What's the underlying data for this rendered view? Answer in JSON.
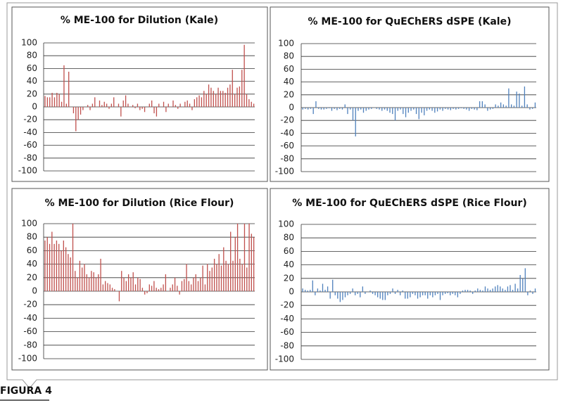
{
  "caption": "FIGURA 4",
  "chart_data": [
    {
      "type": "bar",
      "title": "% ME-100 for Dilution (Kale)",
      "color": "#c0504d",
      "ylim": [
        -100,
        100
      ],
      "yticks": [
        100,
        80,
        60,
        40,
        20,
        0,
        -20,
        -40,
        -60,
        -80,
        -100
      ],
      "grid": true,
      "values": [
        17,
        15,
        15,
        22,
        15,
        22,
        20,
        8,
        65,
        5,
        55,
        0,
        -10,
        -38,
        -20,
        -12,
        -5,
        0,
        3,
        -5,
        5,
        15,
        0,
        10,
        3,
        8,
        5,
        -3,
        5,
        15,
        0,
        5,
        -15,
        10,
        18,
        5,
        0,
        3,
        -2,
        5,
        -5,
        -3,
        -8,
        0,
        5,
        10,
        -10,
        -15,
        5,
        0,
        8,
        -8,
        5,
        0,
        10,
        3,
        -3,
        5,
        0,
        8,
        10,
        5,
        -5,
        12,
        15,
        18,
        15,
        25,
        20,
        35,
        30,
        25,
        20,
        30,
        25,
        25,
        22,
        30,
        35,
        58,
        20,
        30,
        32,
        58,
        97,
        20,
        12,
        8,
        5
      ]
    },
    {
      "type": "bar",
      "title": "% ME-100 for QuEChERS dSPE (Kale)",
      "color": "#4f81bd",
      "ylim": [
        -100,
        100
      ],
      "yticks": [
        100,
        80,
        60,
        40,
        20,
        0,
        -20,
        -40,
        -60,
        -80,
        -100
      ],
      "grid": true,
      "values": [
        -3,
        -2,
        -3,
        -2,
        -10,
        10,
        -2,
        -3,
        -3,
        -2,
        -1,
        -5,
        -2,
        -4,
        -2,
        -3,
        5,
        -10,
        -3,
        -20,
        -45,
        -5,
        -3,
        -8,
        -5,
        -3,
        -2,
        0,
        -2,
        -3,
        -5,
        -3,
        -5,
        -8,
        -10,
        -20,
        -5,
        -3,
        -10,
        -15,
        -8,
        -5,
        -3,
        -10,
        -18,
        -8,
        -12,
        -5,
        -3,
        -5,
        -8,
        -6,
        -3,
        -5,
        -2,
        -3,
        -4,
        -2,
        -3,
        -2,
        -1,
        -2,
        -3,
        -5,
        -2,
        -3,
        -4,
        10,
        10,
        5,
        -5,
        -3,
        -2,
        5,
        3,
        8,
        5,
        3,
        30,
        5,
        3,
        25,
        22,
        3,
        33,
        5,
        -3,
        -2,
        8
      ]
    },
    {
      "type": "bar",
      "title": "% ME-100 for Dilution (Rice Flour)",
      "color": "#c0504d",
      "ylim": [
        -100,
        100
      ],
      "yticks": [
        100,
        80,
        60,
        40,
        20,
        0,
        -20,
        -40,
        -60,
        -80,
        -100
      ],
      "grid": true,
      "values": [
        75,
        80,
        70,
        88,
        70,
        75,
        70,
        60,
        75,
        65,
        55,
        50,
        100,
        30,
        20,
        45,
        35,
        40,
        25,
        20,
        30,
        28,
        20,
        25,
        48,
        10,
        15,
        12,
        10,
        5,
        3,
        0,
        -15,
        30,
        20,
        15,
        25,
        20,
        28,
        10,
        20,
        18,
        5,
        -5,
        -3,
        10,
        8,
        15,
        5,
        3,
        5,
        10,
        25,
        0,
        5,
        10,
        20,
        8,
        -5,
        15,
        18,
        40,
        15,
        10,
        20,
        25,
        15,
        20,
        38,
        10,
        40,
        30,
        35,
        48,
        40,
        55,
        38,
        65,
        45,
        40,
        88,
        45,
        80,
        100,
        48,
        40,
        100,
        35,
        100,
        85,
        80
      ]
    },
    {
      "type": "bar",
      "title": "% ME-100 for QuEChERS dSPE (Rice Flour)",
      "color": "#4f81bd",
      "ylim": [
        -100,
        100
      ],
      "yticks": [
        100,
        80,
        60,
        40,
        20,
        0,
        -20,
        -40,
        -60,
        -80,
        -100
      ],
      "grid": true,
      "values": [
        5,
        3,
        2,
        3,
        17,
        -5,
        5,
        2,
        12,
        3,
        8,
        -10,
        18,
        -5,
        -10,
        -15,
        -12,
        -8,
        -5,
        -3,
        5,
        -5,
        -3,
        -8,
        8,
        -3,
        0,
        2,
        -3,
        -5,
        -8,
        -10,
        -12,
        -12,
        -5,
        -3,
        5,
        -3,
        3,
        -5,
        2,
        -10,
        -10,
        -8,
        -3,
        -5,
        -10,
        -8,
        -5,
        -5,
        -10,
        -5,
        -8,
        -5,
        -3,
        -12,
        -5,
        -3,
        -2,
        -5,
        -3,
        -5,
        -8,
        -3,
        2,
        3,
        3,
        2,
        -3,
        2,
        5,
        3,
        2,
        8,
        5,
        3,
        5,
        8,
        10,
        8,
        5,
        3,
        8,
        10,
        3,
        12,
        5,
        25,
        20,
        35,
        -5,
        2,
        -3,
        5
      ]
    }
  ]
}
